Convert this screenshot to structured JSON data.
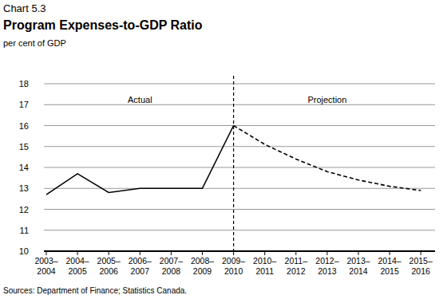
{
  "chart_data": {
    "type": "line",
    "label": "Chart 5.3",
    "title": "Program Expenses-to-GDP Ratio",
    "subtitle": "per cent of GDP",
    "source": "Sources: Department of Finance; Statistics Canada.",
    "categories": [
      "2003–2004",
      "2004–2005",
      "2005–2006",
      "2006–2007",
      "2007–2008",
      "2008–2009",
      "2009–2010",
      "2010–2011",
      "2011–2012",
      "2012–2013",
      "2013–2014",
      "2014–2015",
      "2015–2016"
    ],
    "series": [
      {
        "name": "Actual",
        "color": "#000000",
        "line_style": "solid",
        "values": [
          12.7,
          13.7,
          12.8,
          13.0,
          13.0,
          13.0,
          16.0,
          null,
          null,
          null,
          null,
          null,
          null
        ]
      },
      {
        "name": "Projection",
        "color": "#000000",
        "line_style": "dashed",
        "values": [
          null,
          null,
          null,
          null,
          null,
          null,
          16.0,
          15.1,
          14.4,
          13.8,
          13.4,
          13.1,
          12.9
        ]
      }
    ],
    "ylim": [
      10,
      18
    ],
    "yticks": [
      10,
      11,
      12,
      13,
      14,
      15,
      16,
      17,
      18
    ],
    "grid": true
  }
}
